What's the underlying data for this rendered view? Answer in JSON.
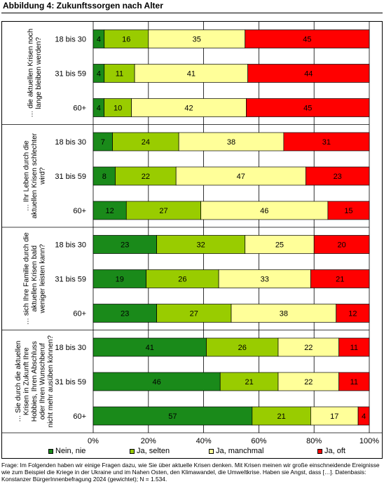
{
  "figure": {
    "title": "Abbildung 4: Zukunftssorgen nach Alter",
    "footnote": "Frage: Im Folgenden haben wir einige Fragen dazu, wie Sie über aktuelle Krisen denken. Mit Krisen meinen wir große einschneidende Ereignisse wie zum Beispiel die Kriege in der Ukraine und im Nahen Osten, den Klimawandel, die Umweltkrise. Haben sie Angst, dass […]. Datenbasis: Konstanzer BürgerInnenbefragung 2024 (gewichtet); N = 1.534."
  },
  "chart_data": {
    "type": "bar",
    "orientation": "horizontal",
    "stacked": "percent",
    "title": "Abbildung 4: Zukunftssorgen nach Alter",
    "xlim": [
      0,
      100
    ],
    "x_ticks": [
      "0%",
      "20%",
      "40%",
      "60%",
      "80%",
      "100%"
    ],
    "grid": true,
    "legend_position": "bottom",
    "series": [
      {
        "name": "Nein, nie",
        "color": "#1a8a1a"
      },
      {
        "name": "Ja, selten",
        "color": "#99cc00"
      },
      {
        "name": "Ja, manchmal",
        "color": "#ffff99"
      },
      {
        "name": "Ja, oft",
        "color": "#ff0000"
      }
    ],
    "groups": [
      {
        "label": "… die aktuellen Krisen noch lange bleiben werden?",
        "label_lines": [
          "… die aktuellen Krisen noch",
          "lange bleiben werden?"
        ],
        "categories": [
          {
            "label": "18 bis 30",
            "values": [
              4,
              16,
              35,
              45
            ],
            "labels": [
              "4",
              "16",
              "35",
              "45"
            ]
          },
          {
            "label": "31 bis 59",
            "values": [
              4,
              11,
              41,
              44
            ],
            "labels": [
              "4",
              "11",
              "41",
              "44"
            ]
          },
          {
            "label": "60+",
            "values": [
              4,
              10,
              42,
              45
            ],
            "labels": [
              "4",
              "10",
              "42",
              "45"
            ]
          }
        ]
      },
      {
        "label": "… Ihr Leben durch die aktuellen Krisen schlechter wird?",
        "label_lines": [
          "… Ihr Leben durch die",
          "aktuellen Krisen schlechter",
          "wird?"
        ],
        "categories": [
          {
            "label": "18 bis 30",
            "values": [
              7,
              24,
              38,
              31
            ],
            "labels": [
              "7",
              "24",
              "38",
              "31"
            ]
          },
          {
            "label": "31 bis 59",
            "values": [
              8,
              22,
              47,
              23
            ],
            "labels": [
              "8",
              "22",
              "47",
              "23"
            ]
          },
          {
            "label": "60+",
            "values": [
              12,
              27,
              46,
              15
            ],
            "labels": [
              "12",
              "27",
              "46",
              "15"
            ]
          }
        ]
      },
      {
        "label": "… sich Ihre Familie durch die aktuellen Krisen bald weniger leisten kann?",
        "label_lines": [
          "… sich Ihre Familie durch die",
          "aktuellen Krisen bald",
          "weniger leisten kann?"
        ],
        "categories": [
          {
            "label": "18 bis 30",
            "values": [
              23,
              32,
              25,
              20
            ],
            "labels": [
              "23",
              "32",
              "25",
              "20"
            ]
          },
          {
            "label": "31 bis 59",
            "values": [
              19,
              26,
              33,
              21
            ],
            "labels": [
              "19",
              "26",
              "33",
              "21"
            ]
          },
          {
            "label": "60+",
            "values": [
              23,
              27,
              38,
              12
            ],
            "labels": [
              "23",
              "27",
              "38",
              "12"
            ]
          }
        ]
      },
      {
        "label": "… Sie durch die aktuellen Krisen in Zukunft Ihre Hobbies, Ihren Abschluss oder Ihren Wunschberuf nicht mehr ausüben können?",
        "label_lines": [
          "… Sie durch die aktuellen",
          "Krisen in Zukunft Ihre",
          "Hobbies, Ihren Abschluss",
          "oder Ihren Wunschberuf",
          "nicht mehr ausüben können?"
        ],
        "categories": [
          {
            "label": "18 bis 30",
            "values": [
              41,
              26,
              22,
              11
            ],
            "labels": [
              "41",
              "26",
              "22",
              "11"
            ]
          },
          {
            "label": "31 bis 59",
            "values": [
              46,
              21,
              22,
              11
            ],
            "labels": [
              "46",
              "21",
              "22",
              "11"
            ]
          },
          {
            "label": "60+",
            "values": [
              57,
              21,
              17,
              4
            ],
            "labels": [
              "57",
              "21",
              "17",
              "4"
            ]
          }
        ]
      }
    ]
  }
}
